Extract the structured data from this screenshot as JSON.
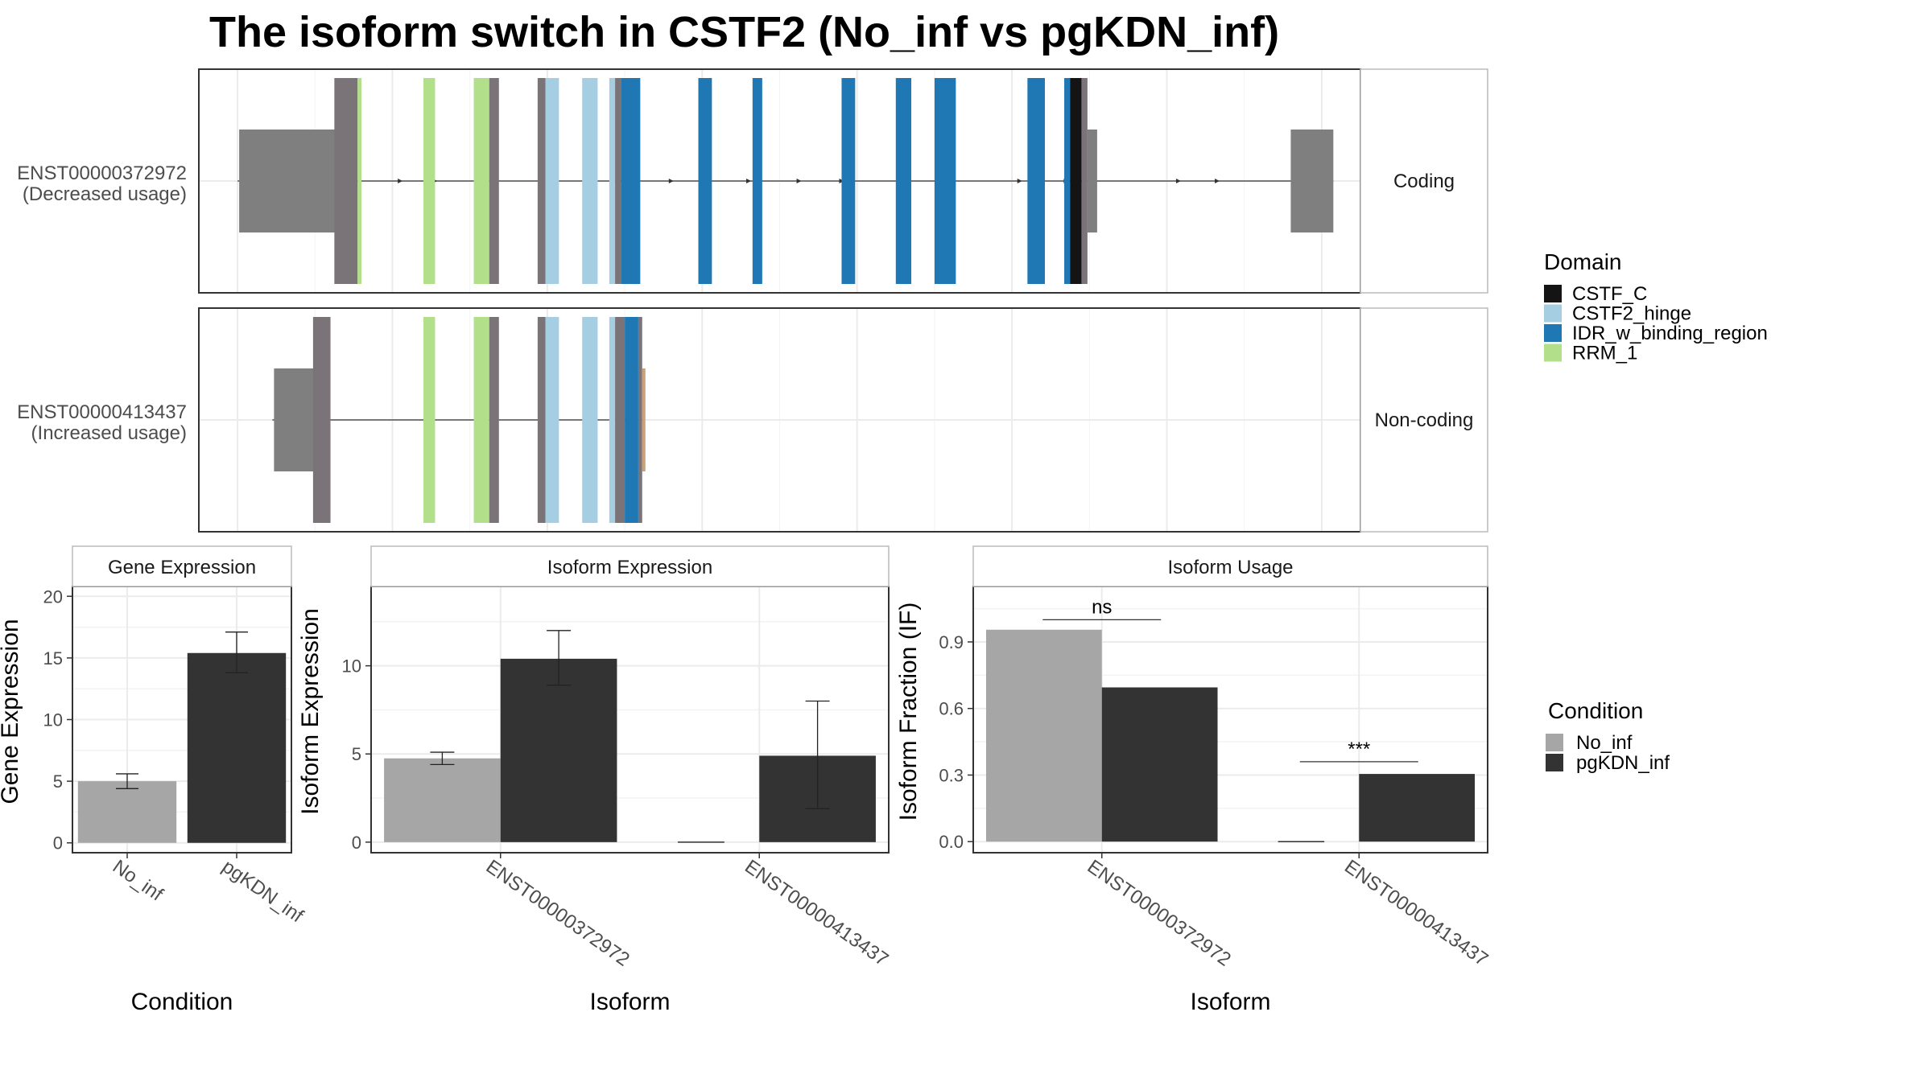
{
  "title": "The isoform switch in CSTF2 (No_inf vs pgKDN_inf)",
  "colors": {
    "utr_gray": "#7f7f7f",
    "exon_gray": "#7a7478",
    "no_inf": "#a6a6a6",
    "pgkdn_inf": "#333333",
    "CSTF_C": "#141414",
    "CSTF2_hinge": "#a6cee3",
    "IDR_w_binding_region": "#1f78b4",
    "RRM_1": "#b2df8a"
  },
  "domain_legend": {
    "title": "Domain",
    "items": [
      {
        "label": "CSTF_C",
        "color": "#141414"
      },
      {
        "label": "CSTF2_hinge",
        "color": "#a6cee3"
      },
      {
        "label": "IDR_w_binding_region",
        "color": "#1f78b4"
      },
      {
        "label": "RRM_1",
        "color": "#b2df8a"
      }
    ]
  },
  "condition_legend": {
    "title": "Condition",
    "items": [
      {
        "label": "No_inf",
        "color": "#a6a6a6"
      },
      {
        "label": "pgKDN_inf",
        "color": "#333333"
      }
    ]
  },
  "transcripts": [
    {
      "id": "ENST00000372972",
      "usage": "(Decreased usage)",
      "class": "Coding",
      "utr5": [
        5,
        7.5
      ],
      "utr3": [
        32.2,
        33.3
      ],
      "exons": [
        {
          "start": 7.5,
          "end": 8.1,
          "domain": "utr"
        },
        {
          "start": 8.1,
          "end": 8.2,
          "domain": "RRM_1"
        },
        {
          "start": 9.8,
          "end": 10.1,
          "domain": "RRM_1"
        },
        {
          "start": 11.1,
          "end": 11.5,
          "domain": "RRM_1"
        },
        {
          "start": 11.5,
          "end": 11.75,
          "domain": "utr"
        },
        {
          "start": 12.75,
          "end": 12.95,
          "domain": "utr"
        },
        {
          "start": 12.95,
          "end": 13.3,
          "domain": "CSTF2_hinge"
        },
        {
          "start": 13.9,
          "end": 14.3,
          "domain": "CSTF2_hinge"
        },
        {
          "start": 14.6,
          "end": 14.75,
          "domain": "CSTF2_hinge"
        },
        {
          "start": 14.75,
          "end": 14.9,
          "domain": "utr"
        },
        {
          "start": 14.9,
          "end": 15.4,
          "domain": "IDR_w_binding_region"
        },
        {
          "start": 16.9,
          "end": 17.25,
          "domain": "IDR_w_binding_region"
        },
        {
          "start": 18.3,
          "end": 18.55,
          "domain": "IDR_w_binding_region"
        },
        {
          "start": 20.6,
          "end": 20.95,
          "domain": "IDR_w_binding_region"
        },
        {
          "start": 22.0,
          "end": 22.4,
          "domain": "IDR_w_binding_region"
        },
        {
          "start": 23.0,
          "end": 23.55,
          "domain": "IDR_w_binding_region"
        },
        {
          "start": 25.4,
          "end": 25.85,
          "domain": "IDR_w_binding_region"
        },
        {
          "start": 26.35,
          "end": 26.5,
          "domain": "IDR_w_binding_region"
        },
        {
          "start": 26.5,
          "end": 26.8,
          "domain": "CSTF_C"
        },
        {
          "start": 26.8,
          "end": 26.95,
          "domain": "utr"
        }
      ],
      "utr3_tail": [
        26.95,
        27.2
      ]
    },
    {
      "id": "ENST00000413437",
      "usage": "(Increased usage)",
      "class": "Non-coding",
      "utr5": [
        5.9,
        6.95
      ],
      "utr3": null,
      "exons": [
        {
          "start": 6.95,
          "end": 7.4,
          "domain": "utr"
        },
        {
          "start": 9.8,
          "end": 10.1,
          "domain": "RRM_1"
        },
        {
          "start": 11.1,
          "end": 11.5,
          "domain": "RRM_1"
        },
        {
          "start": 11.5,
          "end": 11.75,
          "domain": "utr"
        },
        {
          "start": 12.75,
          "end": 12.95,
          "domain": "utr"
        },
        {
          "start": 12.95,
          "end": 13.3,
          "domain": "CSTF2_hinge"
        },
        {
          "start": 13.9,
          "end": 14.3,
          "domain": "CSTF2_hinge"
        },
        {
          "start": 14.6,
          "end": 14.75,
          "domain": "CSTF2_hinge"
        },
        {
          "start": 14.75,
          "end": 15.0,
          "domain": "utr"
        },
        {
          "start": 15.0,
          "end": 15.35,
          "domain": "IDR_w_binding_region"
        },
        {
          "start": 15.35,
          "end": 15.45,
          "domain": "utr"
        }
      ],
      "utr3_tail": null
    }
  ],
  "chart_data": [
    {
      "type": "bar",
      "panel_title": "Gene Expression",
      "xlabel": "Condition",
      "ylabel": "Gene Expression",
      "categories": [
        "No_inf",
        "pgKDN_inf"
      ],
      "values": [
        5.0,
        15.4
      ],
      "errors": [
        [
          4.4,
          5.6
        ],
        [
          13.8,
          17.1
        ]
      ],
      "ylim": [
        -0.8,
        20.8
      ],
      "yticks": [
        0,
        5,
        10,
        15,
        20
      ],
      "grid": true
    },
    {
      "type": "bar",
      "panel_title": "Isoform Expression",
      "xlabel": "Isoform",
      "ylabel": "Isoform Expression",
      "categories": [
        "ENST00000372972",
        "ENST00000413437"
      ],
      "series": [
        {
          "name": "No_inf",
          "values": [
            4.75,
            0.0
          ],
          "errors": [
            [
              4.4,
              5.1
            ],
            [
              0.0,
              0.0
            ]
          ]
        },
        {
          "name": "pgKDN_inf",
          "values": [
            10.4,
            4.9
          ],
          "errors": [
            [
              8.9,
              12.0
            ],
            [
              1.9,
              8.0
            ]
          ]
        }
      ],
      "ylim": [
        -0.6,
        14.5
      ],
      "yticks": [
        0,
        5,
        10
      ],
      "grid": true
    },
    {
      "type": "bar",
      "panel_title": "Isoform Usage",
      "xlabel": "Isoform",
      "ylabel": "Isoform Fraction (IF)",
      "categories": [
        "ENST00000372972",
        "ENST00000413437"
      ],
      "series": [
        {
          "name": "No_inf",
          "values": [
            0.955,
            0.0
          ]
        },
        {
          "name": "pgKDN_inf",
          "values": [
            0.695,
            0.305
          ]
        }
      ],
      "annotations": [
        {
          "category": "ENST00000372972",
          "label": "ns",
          "y": 1.0
        },
        {
          "category": "ENST00000413437",
          "label": "***",
          "y": 0.36
        }
      ],
      "ylim": [
        -0.05,
        1.15
      ],
      "yticks": [
        0.0,
        0.3,
        0.6,
        0.9
      ],
      "ytick_labels": [
        "0.0",
        "0.3",
        "0.6",
        "0.9"
      ],
      "grid": true
    }
  ]
}
